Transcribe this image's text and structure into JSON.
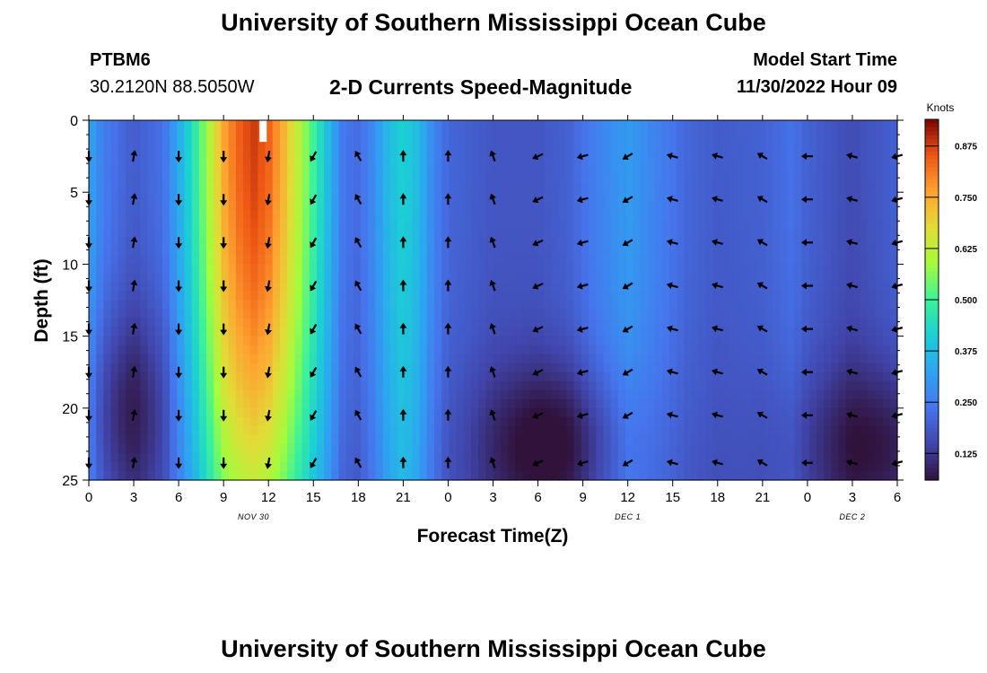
{
  "header": {
    "title": "University of Southern Mississippi Ocean Cube",
    "station": "PTBM6",
    "location": "30.2120N  88.5050W",
    "subtitle": "2-D Currents Speed-Magnitude",
    "model_start_label": "Model Start Time",
    "model_start_value": "11/30/2022 Hour 09"
  },
  "footer": {
    "title": "University of Southern Mississippi Ocean Cube"
  },
  "chart_data": {
    "type": "heatmap",
    "xlabel": "Forecast Time(Z)",
    "ylabel": "Depth (ft)",
    "x_tick_labels": [
      "0",
      "3",
      "6",
      "9",
      "12",
      "15",
      "18",
      "21",
      "0",
      "3",
      "6",
      "9",
      "12",
      "15",
      "18",
      "21",
      "0",
      "3",
      "6"
    ],
    "x_range_hours": [
      0,
      54
    ],
    "date_labels": [
      {
        "text": "NOV 30",
        "hour": 11
      },
      {
        "text": "DEC 1",
        "hour": 36
      },
      {
        "text": "DEC 2",
        "hour": 51
      }
    ],
    "y_ticks": [
      0,
      5,
      10,
      15,
      20,
      25
    ],
    "ylim": [
      0,
      25
    ],
    "y_inverted": true,
    "colorbar": {
      "label": "Knots",
      "ticks": [
        "0.125",
        "0.250",
        "0.375",
        "0.500",
        "0.625",
        "0.750",
        "0.875"
      ],
      "range": [
        0.06,
        0.94
      ],
      "colormap": "turbo"
    },
    "speed_profile_by_hour": [
      [
        0,
        0.33
      ],
      [
        1,
        0.25
      ],
      [
        3,
        0.19
      ],
      [
        5,
        0.23
      ],
      [
        6,
        0.34
      ],
      [
        7,
        0.46
      ],
      [
        8,
        0.6
      ],
      [
        9,
        0.76
      ],
      [
        10,
        0.84
      ],
      [
        11,
        0.88
      ],
      [
        12,
        0.84
      ],
      [
        13,
        0.74
      ],
      [
        14,
        0.62
      ],
      [
        15,
        0.5
      ],
      [
        16,
        0.37
      ],
      [
        17,
        0.24
      ],
      [
        18,
        0.22
      ],
      [
        19,
        0.28
      ],
      [
        20,
        0.37
      ],
      [
        21,
        0.42
      ],
      [
        22,
        0.37
      ],
      [
        23,
        0.27
      ],
      [
        24,
        0.21
      ],
      [
        27,
        0.18
      ],
      [
        30,
        0.18
      ],
      [
        32,
        0.2
      ],
      [
        34,
        0.26
      ],
      [
        36,
        0.31
      ],
      [
        38,
        0.26
      ],
      [
        40,
        0.21
      ],
      [
        42,
        0.19
      ],
      [
        45,
        0.2
      ],
      [
        47,
        0.23
      ],
      [
        48,
        0.2
      ],
      [
        51,
        0.16
      ],
      [
        54,
        0.2
      ]
    ],
    "vector_columns": [
      {
        "hour": 0,
        "dir": 180
      },
      {
        "hour": 3,
        "dir": 10
      },
      {
        "hour": 6,
        "dir": 180
      },
      {
        "hour": 9,
        "dir": 180
      },
      {
        "hour": 12,
        "dir": 190
      },
      {
        "hour": 15,
        "dir": 210
      },
      {
        "hour": 18,
        "dir": 330
      },
      {
        "hour": 21,
        "dir": 0
      },
      {
        "hour": 24,
        "dir": 0
      },
      {
        "hour": 27,
        "dir": 340
      },
      {
        "hour": 30,
        "dir": 245
      },
      {
        "hour": 33,
        "dir": 255
      },
      {
        "hour": 36,
        "dir": 240
      },
      {
        "hour": 39,
        "dir": 285
      },
      {
        "hour": 42,
        "dir": 285
      },
      {
        "hour": 45,
        "dir": 300
      },
      {
        "hour": 48,
        "dir": 270
      },
      {
        "hour": 51,
        "dir": 285
      },
      {
        "hour": 54,
        "dir": 255
      }
    ],
    "vector_depths": [
      2.5,
      5.5,
      8.5,
      11.5,
      14.5,
      17.5,
      20.5,
      23.8
    ]
  }
}
